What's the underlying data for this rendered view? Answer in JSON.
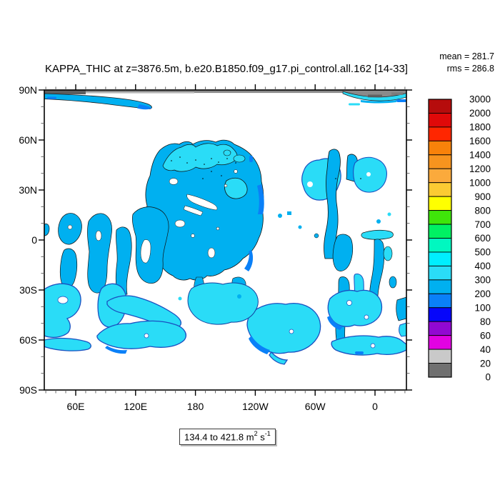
{
  "figure": {
    "title": "KAPPA_THIC at z=3876.5m, b.e20.B1850.f09_g17.pi_control.all.162 [14-33]",
    "stats": {
      "mean": "mean = 281.7",
      "rms": "rms = 286.8"
    },
    "range_box": {
      "prefix": "134.4 to 421.8 m",
      "sup1": "2",
      "mid": " s",
      "sup2": "-1"
    }
  },
  "axes": {
    "y_major_labels": [
      "90N",
      "60N",
      "30N",
      "0",
      "30S",
      "60S",
      "90S"
    ],
    "x_major_labels": [
      "60E",
      "120E",
      "180",
      "120W",
      "60W",
      "0"
    ]
  },
  "colorbar": {
    "boundary_labels": [
      "3000",
      "2000",
      "1800",
      "1600",
      "1400",
      "1200",
      "1000",
      "900",
      "800",
      "700",
      "600",
      "500",
      "400",
      "300",
      "200",
      "100",
      "80",
      "60",
      "40",
      "20",
      "0"
    ],
    "box_colors_top_to_bottom": [
      "#b60c0c",
      "#e00909",
      "#ff2600",
      "#f8820a",
      "#f7941e",
      "#fbaa3c",
      "#fccb33",
      "#ffff00",
      "#3fe60a",
      "#00f163",
      "#00f8c0",
      "#00eeff",
      "#2adcf7",
      "#00b0f0",
      "#0a80f8",
      "#0606fa",
      "#9208d2",
      "#e202e2",
      "#c9c9c9",
      "#707070"
    ]
  },
  "chart_data": {
    "type": "heatmap",
    "subtype": "filled-contour-map",
    "field": "KAPPA_THIC",
    "depth_label": "z=3876.5m",
    "case": "b.e20.B1850.f09_g17.pi_control.all.162",
    "time_range": "[14-33]",
    "mean": 281.7,
    "rms": 286.8,
    "data_min": 134.4,
    "data_max": 421.8,
    "units": "m2 s-1",
    "contour_levels": [
      0,
      20,
      40,
      60,
      80,
      100,
      200,
      300,
      400,
      500,
      600,
      700,
      800,
      900,
      1000,
      1200,
      1400,
      1600,
      1800,
      2000,
      3000
    ],
    "x_axis": {
      "tick_labels": [
        "60E",
        "120E",
        "180",
        "120W",
        "60W",
        "0"
      ],
      "minor_tick_interval_deg": 10
    },
    "y_axis": {
      "tick_labels": [
        "90N",
        "60N",
        "30N",
        "0",
        "30S",
        "60S",
        "90S"
      ],
      "minor_tick_interval_deg": 10
    },
    "legend_position": "right",
    "visible_value_colors": {
      "100-200": "#0a80f8",
      "200-300": "#00b0f0",
      "300-400": "#2adcf7"
    },
    "contour_outline_color": "#1a4fc0",
    "background": "#ffffff",
    "notes": "Ocean diffusivity field on displaced-pole model grid; white = land/masked; dominant fill 200-300 band, lighter cyan 300-400 band, darker blue 100-200 fringes; gray band along 90N edge."
  }
}
